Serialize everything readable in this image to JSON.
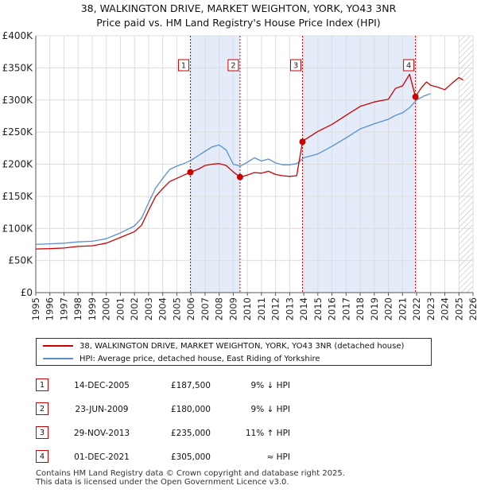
{
  "title_line1": "38, WALKINGTON DRIVE, MARKET WEIGHTON, YORK, YO43 3NR",
  "title_line2": "Price paid vs. HM Land Registry's House Price Index (HPI)",
  "chart_data": {
    "type": "line",
    "title": "38, WALKINGTON DRIVE, MARKET WEIGHTON, YORK, YO43 3NR — Price paid vs. HM Land Registry's House Price Index (HPI)",
    "xlabel": "",
    "ylabel": "",
    "xlim": [
      1995,
      2026
    ],
    "ylim": [
      0,
      400000
    ],
    "x_ticks": [
      "1995",
      "1996",
      "1997",
      "1998",
      "1999",
      "2000",
      "2001",
      "2002",
      "2003",
      "2004",
      "2005",
      "2006",
      "2007",
      "2008",
      "2009",
      "2010",
      "2011",
      "2012",
      "2013",
      "2014",
      "2015",
      "2016",
      "2017",
      "2018",
      "2019",
      "2020",
      "2021",
      "2022",
      "2023",
      "2024",
      "2025",
      "2026"
    ],
    "y_ticks": [
      {
        "value": 0,
        "label": "£0"
      },
      {
        "value": 50000,
        "label": "£50K"
      },
      {
        "value": 100000,
        "label": "£100K"
      },
      {
        "value": 150000,
        "label": "£150K"
      },
      {
        "value": 200000,
        "label": "£200K"
      },
      {
        "value": 250000,
        "label": "£250K"
      },
      {
        "value": 300000,
        "label": "£300K"
      },
      {
        "value": 350000,
        "label": "£350K"
      },
      {
        "value": 400000,
        "label": "£400K"
      }
    ],
    "grid": true,
    "shaded_periods": [
      [
        2005.96,
        2009.48
      ],
      [
        2013.91,
        2021.92
      ]
    ],
    "hatched_after": 2025.0,
    "series": [
      {
        "name": "38, WALKINGTON DRIVE, MARKET WEIGHTON, YORK, YO43 3NR (detached house)",
        "color": "#cc0000",
        "x": [
          1995,
          1996,
          1997,
          1998,
          1999,
          2000,
          2001,
          2002,
          2002.5,
          2003,
          2003.5,
          2004,
          2004.5,
          2005,
          2005.5,
          2005.96,
          2006.5,
          2007,
          2007.5,
          2008,
          2008.5,
          2009,
          2009.48,
          2010,
          2010.5,
          2011,
          2011.5,
          2012,
          2012.5,
          2013,
          2013.5,
          2013.91,
          2014,
          2015,
          2016,
          2017,
          2018,
          2019,
          2020,
          2020.5,
          2021,
          2021.5,
          2021.92,
          2022.3,
          2022.7,
          2023,
          2023.5,
          2024,
          2024.5,
          2025,
          2025.3
        ],
        "y": [
          68000,
          68500,
          69500,
          72000,
          73000,
          77000,
          86000,
          95000,
          105000,
          128000,
          150000,
          162000,
          173000,
          178000,
          183000,
          187500,
          192000,
          198000,
          200000,
          201000,
          198000,
          188000,
          180000,
          183000,
          187000,
          186000,
          189000,
          184000,
          182000,
          181000,
          182000,
          235000,
          237000,
          251000,
          262000,
          276000,
          290000,
          297000,
          301000,
          318000,
          322000,
          340000,
          305000,
          318000,
          328000,
          323000,
          320000,
          316000,
          326000,
          335000,
          331000
        ]
      },
      {
        "name": "HPI: Average price, detached house, East Riding of Yorkshire",
        "color": "#5b8fd0",
        "x": [
          1995,
          1996,
          1997,
          1998,
          1999,
          2000,
          2001,
          2002,
          2002.5,
          2003,
          2003.5,
          2004,
          2004.5,
          2005,
          2005.5,
          2006,
          2006.5,
          2007,
          2007.5,
          2008,
          2008.5,
          2009,
          2009.5,
          2010,
          2010.5,
          2011,
          2011.5,
          2012,
          2012.5,
          2013,
          2013.5,
          2014,
          2015,
          2016,
          2017,
          2018,
          2019,
          2020,
          2020.5,
          2021,
          2021.5,
          2022,
          2022.5,
          2023
        ],
        "y": [
          75000,
          76000,
          77000,
          79000,
          80000,
          84000,
          93000,
          104000,
          116000,
          140000,
          163000,
          178000,
          192000,
          197000,
          201000,
          206000,
          213000,
          220000,
          227000,
          230000,
          222000,
          200000,
          197000,
          203000,
          210000,
          205000,
          208000,
          202000,
          199000,
          199000,
          201000,
          210000,
          216000,
          228000,
          241000,
          255000,
          263000,
          270000,
          276000,
          280000,
          288000,
          300000,
          306000,
          310000
        ]
      }
    ],
    "sales": [
      {
        "n": "1",
        "x": 2005.96,
        "y": 187500
      },
      {
        "n": "2",
        "x": 2009.48,
        "y": 180000
      },
      {
        "n": "3",
        "x": 2013.91,
        "y": 235000
      },
      {
        "n": "4",
        "x": 2021.92,
        "y": 305000
      }
    ]
  },
  "legend": {
    "property_label": "38, WALKINGTON DRIVE, MARKET WEIGHTON, YORK, YO43 3NR (detached house)",
    "hpi_label": "HPI: Average price, detached house, East Riding of Yorkshire",
    "property_color": "#cc0000",
    "hpi_color": "#5b8fd0"
  },
  "sales_table": [
    {
      "n": "1",
      "date": "14-DEC-2005",
      "price": "£187,500",
      "hpi": "9% ↓ HPI"
    },
    {
      "n": "2",
      "date": "23-JUN-2009",
      "price": "£180,000",
      "hpi": "9% ↓ HPI"
    },
    {
      "n": "3",
      "date": "29-NOV-2013",
      "price": "£235,000",
      "hpi": "11% ↑ HPI"
    },
    {
      "n": "4",
      "date": "01-DEC-2021",
      "price": "£305,000",
      "hpi": "≈ HPI"
    }
  ],
  "footer": {
    "line1": "Contains HM Land Registry data © Crown copyright and database right 2025.",
    "line2": "This data is licensed under the Open Government Licence v3.0."
  }
}
